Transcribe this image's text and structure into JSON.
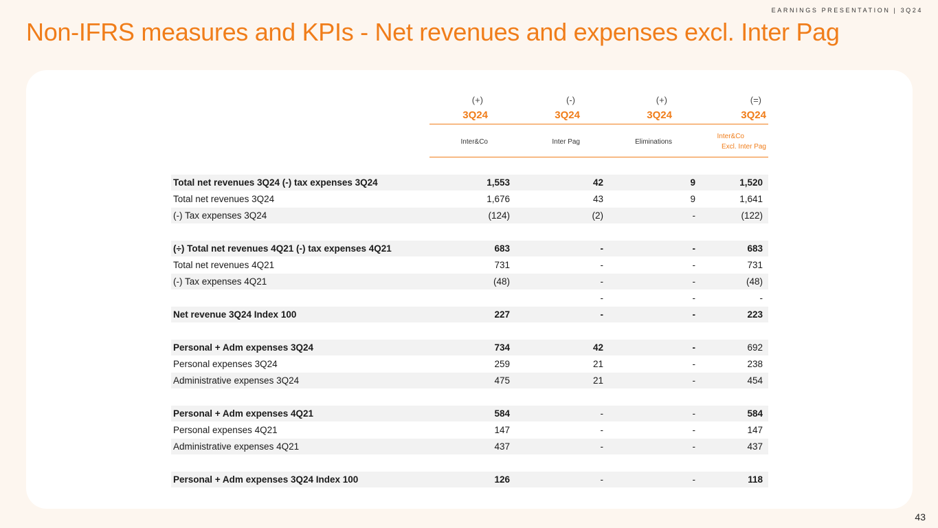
{
  "header": {
    "tag": "EARNINGS PRESENTATION | 3Q24"
  },
  "title": "Non-IFRS measures and KPIs - Net revenues and expenses excl. Inter Pag",
  "columns": [
    {
      "sign": "(+)",
      "period": "3Q24",
      "entity": "Inter&Co",
      "entity2": ""
    },
    {
      "sign": "(-)",
      "period": "3Q24",
      "entity": "Inter Pag",
      "entity2": ""
    },
    {
      "sign": "(+)",
      "period": "3Q24",
      "entity": "Eliminations",
      "entity2": ""
    },
    {
      "sign": "(=)",
      "period": "3Q24",
      "entity": "Inter&Co",
      "entity2": "Excl. Inter Pag"
    }
  ],
  "rows": [
    {
      "label": "Total net revenues 3Q24 (-) tax expenses 3Q24",
      "v": [
        "1,553",
        "42",
        "9",
        "1,520"
      ]
    },
    {
      "label": "Total net revenues 3Q24",
      "v": [
        "1,676",
        "43",
        "9",
        "1,641"
      ]
    },
    {
      "label": "(-) Tax expenses 3Q24",
      "v": [
        "(124)",
        "(2)",
        "-",
        "(122)"
      ]
    },
    {
      "label": "(÷) Total net revenues 4Q21 (-) tax expenses 4Q21",
      "v": [
        "683",
        "-",
        "-",
        "683"
      ]
    },
    {
      "label": "Total net revenues 4Q21",
      "v": [
        "731",
        "-",
        "-",
        "731"
      ]
    },
    {
      "label": "(-) Tax expenses 4Q21",
      "v": [
        "(48)",
        "-",
        "-",
        "(48)"
      ]
    },
    {
      "label": "",
      "v": [
        "",
        "-",
        "-",
        "-"
      ]
    },
    {
      "label": "Net revenue 3Q24 Index 100",
      "v": [
        "227",
        "-",
        "-",
        "223"
      ]
    },
    {
      "label": "Personal + Adm expenses 3Q24",
      "v": [
        "734",
        "42",
        "-",
        "692"
      ]
    },
    {
      "label": "Personal expenses 3Q24",
      "v": [
        "259",
        "21",
        "-",
        "238"
      ]
    },
    {
      "label": "Administrative expenses 3Q24",
      "v": [
        "475",
        "21",
        "-",
        "454"
      ]
    },
    {
      "label": "Personal + Adm expenses 4Q21",
      "v": [
        "584",
        "-",
        "-",
        "584"
      ]
    },
    {
      "label": "Personal expenses 4Q21",
      "v": [
        "147",
        "-",
        "-",
        "147"
      ]
    },
    {
      "label": "Administrative expenses 4Q21",
      "v": [
        "437",
        "-",
        "-",
        "437"
      ]
    },
    {
      "label": "Personal + Adm expenses  3Q24 Index 100",
      "v": [
        "126",
        "-",
        "-",
        "118"
      ]
    }
  ],
  "page_number": "43"
}
